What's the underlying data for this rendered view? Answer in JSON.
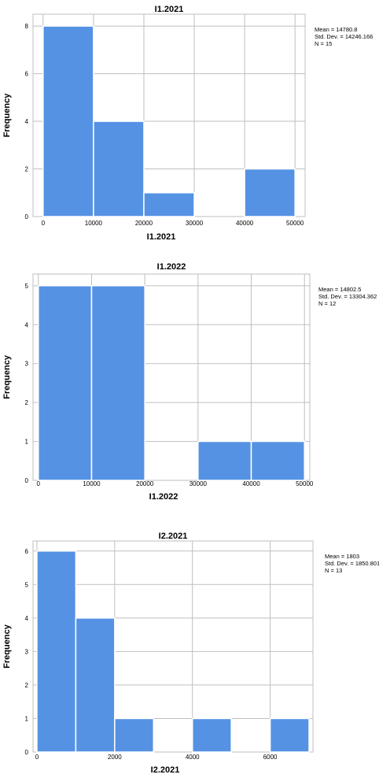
{
  "chart_data": [
    {
      "type": "bar",
      "title": "I1.2021",
      "xlabel": "I1.2021",
      "ylabel": "Frequency",
      "bins": [
        [
          0,
          10000
        ],
        [
          10000,
          20000
        ],
        [
          20000,
          30000
        ],
        [
          30000,
          40000
        ],
        [
          40000,
          50000
        ]
      ],
      "values": [
        8,
        4,
        1,
        0,
        2
      ],
      "xlim": [
        -2000,
        52000
      ],
      "ylim": [
        0,
        8.5
      ],
      "xticks": [
        0,
        10000,
        20000,
        30000,
        40000,
        50000
      ],
      "yticks": [
        0,
        2,
        4,
        6,
        8
      ],
      "stats": [
        "Mean = 14780.8",
        "Std. Dev. = 14246.166",
        "N = 15"
      ],
      "bar_color": "#5592e4",
      "grid": true
    },
    {
      "type": "bar",
      "title": "I1.2022",
      "xlabel": "I1.2022",
      "ylabel": "Frequency",
      "bins": [
        [
          0,
          10000
        ],
        [
          10000,
          20000
        ],
        [
          20000,
          30000
        ],
        [
          30000,
          40000
        ],
        [
          40000,
          50000
        ]
      ],
      "values": [
        5,
        5,
        0,
        1,
        1
      ],
      "xlim": [
        -1000,
        51000
      ],
      "ylim": [
        0,
        5.3
      ],
      "xticks": [
        0,
        10000,
        20000,
        30000,
        40000,
        50000
      ],
      "yticks": [
        0,
        1,
        2,
        3,
        4,
        5
      ],
      "stats": [
        "Mean = 14802.5",
        "Std. Dev. = 13304.362",
        "N = 12"
      ],
      "bar_color": "#5592e4",
      "grid": true
    },
    {
      "type": "bar",
      "title": "I2.2021",
      "xlabel": "I2.2021",
      "ylabel": "Frequency",
      "bins": [
        [
          0,
          1000
        ],
        [
          1000,
          2000
        ],
        [
          2000,
          3000
        ],
        [
          3000,
          4000
        ],
        [
          4000,
          5000
        ],
        [
          5000,
          6000
        ],
        [
          6000,
          7000
        ]
      ],
      "values": [
        6,
        4,
        1,
        0,
        1,
        0,
        1
      ],
      "xlim": [
        -100,
        7100
      ],
      "ylim": [
        0,
        6.3
      ],
      "xticks": [
        0,
        2000,
        4000,
        6000
      ],
      "yticks": [
        0,
        1,
        2,
        3,
        4,
        5,
        6
      ],
      "stats": [
        "Mean = 1803",
        "Std. Dev. = 1850.801",
        "N = 13"
      ],
      "bar_color": "#5592e4",
      "grid": true
    }
  ]
}
